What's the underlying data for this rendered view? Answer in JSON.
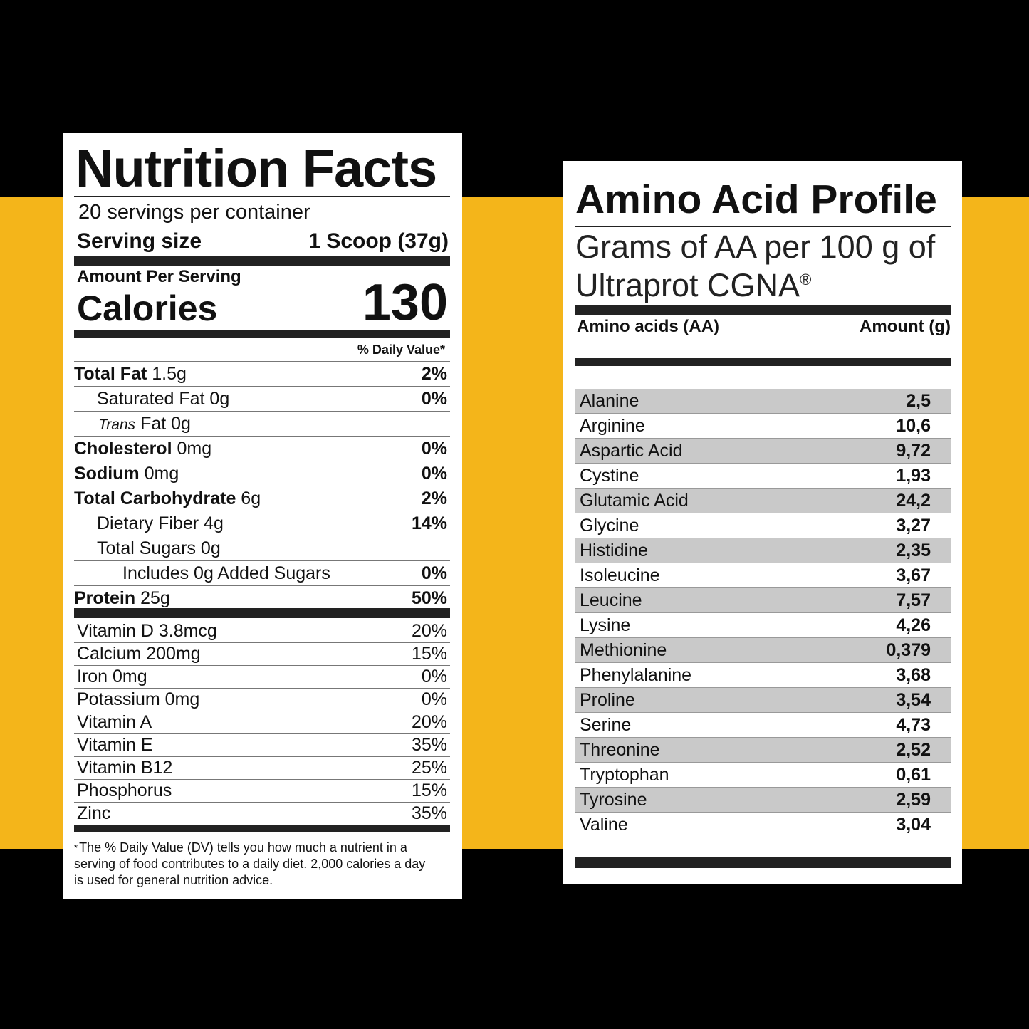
{
  "nutrition": {
    "title": "Nutrition Facts",
    "servings": "20 servings per container",
    "serving_size_label": "Serving size",
    "serving_size_value": "1 Scoop (37g)",
    "amount_per_serving": "Amount Per Serving",
    "calories_label": "Calories",
    "calories_value": "130",
    "daily_value_header": "% Daily Value*",
    "rows": [
      {
        "bold": "Total Fat",
        "rest": " 1.5g",
        "pct": "2%"
      },
      {
        "bold": "",
        "rest": "Saturated Fat 0g",
        "pct": "0%"
      },
      {
        "italic": "Trans",
        "rest": " Fat 0g",
        "pct": ""
      },
      {
        "bold": "Cholesterol",
        "rest": " 0mg",
        "pct": "0%"
      },
      {
        "bold": "Sodium",
        "rest": " 0mg",
        "pct": "0%"
      },
      {
        "bold": "Total Carbohydrate",
        "rest": " 6g",
        "pct": "2%"
      },
      {
        "bold": "",
        "rest": "Dietary Fiber 4g",
        "pct": "14%"
      },
      {
        "bold": "",
        "rest": "Total Sugars 0g",
        "pct": ""
      },
      {
        "bold": "",
        "rest": "Includes 0g Added Sugars",
        "pct": "0%"
      },
      {
        "bold": "Protein",
        "rest": " 25g",
        "pct": "50%"
      }
    ],
    "vitamins": [
      {
        "name": "Vitamin D 3.8mcg",
        "pct": "20%"
      },
      {
        "name": "Calcium 200mg",
        "pct": "15%"
      },
      {
        "name": "Iron 0mg",
        "pct": "0%"
      },
      {
        "name": "Potassium 0mg",
        "pct": "0%"
      },
      {
        "name": "Vitamin A",
        "pct": "20%"
      },
      {
        "name": "Vitamin E",
        "pct": "35%"
      },
      {
        "name": "Vitamin B12",
        "pct": "25%"
      },
      {
        "name": "Phosphorus",
        "pct": "15%"
      },
      {
        "name": "Zinc",
        "pct": "35%"
      }
    ],
    "footnote_marker": "*",
    "footnote": "The % Daily Value (DV) tells you how much a nutrient in a serving of food contributes to a daily diet. 2,000 calories a day is used for general nutrition advice."
  },
  "amino": {
    "title": "Amino Acid Profile",
    "subtitle": "Grams of AA per 100 g of Ultraprot CGNA",
    "subtitle_mark": "®",
    "col_name": "Amino acids (AA)",
    "col_amount": "Amount (g)",
    "rows": [
      {
        "name": "Alanine",
        "value": "2,5"
      },
      {
        "name": "Arginine",
        "value": "10,6"
      },
      {
        "name": "Aspartic Acid",
        "value": "9,72"
      },
      {
        "name": "Cystine",
        "value": "1,93"
      },
      {
        "name": "Glutamic Acid",
        "value": "24,2"
      },
      {
        "name": "Glycine",
        "value": "3,27"
      },
      {
        "name": "Histidine",
        "value": "2,35"
      },
      {
        "name": "Isoleucine",
        "value": "3,67"
      },
      {
        "name": "Leucine",
        "value": "7,57"
      },
      {
        "name": "Lysine",
        "value": "4,26"
      },
      {
        "name": "Methionine",
        "value": "0,379"
      },
      {
        "name": "Phenylalanine",
        "value": "3,68"
      },
      {
        "name": "Proline",
        "value": "3,54"
      },
      {
        "name": "Serine",
        "value": "4,73"
      },
      {
        "name": "Threonine",
        "value": "2,52"
      },
      {
        "name": "Tryptophan",
        "value": "0,61"
      },
      {
        "name": "Tyrosine",
        "value": "2,59"
      },
      {
        "name": "Valine",
        "value": "3,04"
      }
    ]
  },
  "colors": {
    "background": "#000000",
    "band": "#F4B51A",
    "panel": "#FFFFFF",
    "row_shade": "#C9C9C9"
  }
}
